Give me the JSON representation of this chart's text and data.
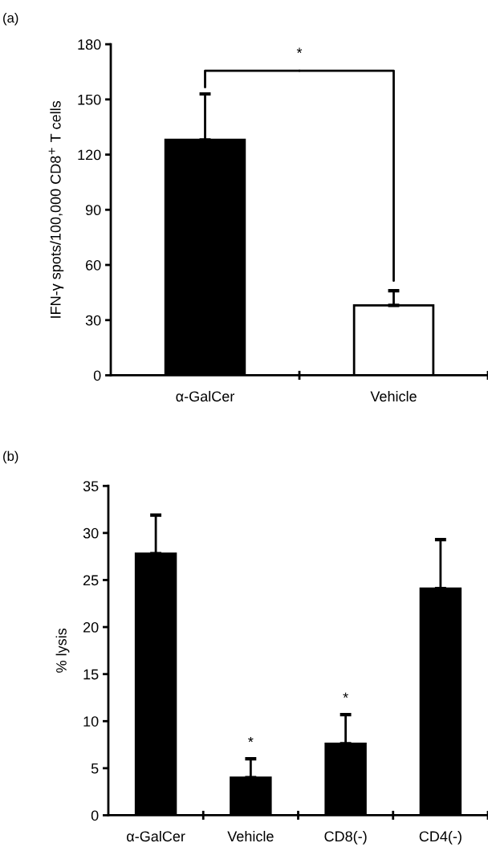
{
  "chart_data": [
    {
      "type": "bar",
      "categories": [
        "α-GalCer",
        "Vehicle"
      ],
      "values": [
        128,
        38
      ],
      "colors": [
        "#000000",
        "#ffffff"
      ],
      "errors": [
        [
          128,
          153
        ],
        [
          38,
          46
        ]
      ],
      "ylabel": "IFN-γ spots/100,000 CD8$^{+}$ T cells",
      "ylim": [
        0,
        180
      ],
      "yticks": [
        0,
        30,
        60,
        90,
        120,
        150,
        180
      ],
      "annotations": [
        "(a)",
        "*"
      ],
      "grid": false,
      "legend": false
    },
    {
      "type": "bar",
      "categories": [
        "α-GalCer",
        "Vehicle",
        "CD8(-)",
        "CD4(-)"
      ],
      "values": [
        27.8,
        4,
        7.6,
        24.1
      ],
      "colors": [
        "#000000",
        "#000000",
        "#000000",
        "#000000"
      ],
      "errors": [
        [
          27.8,
          31.9
        ],
        [
          4,
          6
        ],
        [
          7.6,
          10.7
        ],
        [
          24.1,
          29.3
        ]
      ],
      "ylabel": "% lysis",
      "ylim": [
        0,
        35
      ],
      "yticks": [
        0,
        5,
        10,
        15,
        20,
        25,
        30,
        35
      ],
      "annotations": [
        "(b)",
        {
          "text": "*",
          "x": "Vehicle",
          "y": 6
        },
        {
          "text": "*",
          "x": "CD8(-)",
          "y": 10.7
        }
      ],
      "grid": false,
      "legend": false
    }
  ]
}
